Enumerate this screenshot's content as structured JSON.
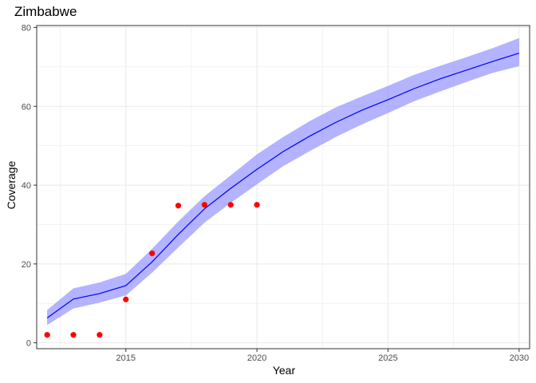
{
  "chart_data": {
    "type": "line",
    "title": "Zimbabwe",
    "xlabel": "Year",
    "ylabel": "Coverage",
    "xlim": [
      2011.6,
      2030.4
    ],
    "ylim": [
      -1.5,
      80.5
    ],
    "x_ticks": [
      2015,
      2020,
      2025,
      2030
    ],
    "y_ticks": [
      0,
      20,
      40,
      60,
      80
    ],
    "grid": true,
    "colors": {
      "line": "#0000ff",
      "ribbon": "#8080ff",
      "points": "#ff0000",
      "grid": "#ebebeb",
      "border": "#333333"
    },
    "series": [
      {
        "kind": "line_with_band",
        "x": [
          2012,
          2013,
          2014,
          2015,
          2016,
          2017,
          2018,
          2019,
          2020,
          2021,
          2022,
          2023,
          2024,
          2025,
          2026,
          2027,
          2028,
          2029,
          2030
        ],
        "y": [
          6.3,
          11.1,
          12.5,
          14.5,
          20.5,
          27.5,
          34.0,
          39.2,
          44.0,
          48.5,
          52.4,
          55.9,
          59.0,
          61.7,
          64.5,
          67.0,
          69.2,
          71.4,
          73.5
        ],
        "lower": [
          4.5,
          8.7,
          10.2,
          12.0,
          17.8,
          24.2,
          30.5,
          35.5,
          40.2,
          44.8,
          48.6,
          52.2,
          55.4,
          58.3,
          61.3,
          63.8,
          66.2,
          68.5,
          70.2
        ],
        "upper": [
          8.3,
          13.8,
          15.3,
          17.5,
          23.8,
          30.8,
          37.2,
          42.5,
          47.8,
          52.2,
          56.2,
          59.7,
          62.5,
          65.2,
          68.0,
          70.3,
          72.5,
          74.8,
          77.3
        ]
      },
      {
        "kind": "points",
        "x": [
          2012,
          2013,
          2014,
          2015,
          2016,
          2017,
          2018,
          2019,
          2020
        ],
        "y": [
          2.0,
          2.0,
          2.0,
          11.0,
          22.7,
          34.8,
          35.0,
          35.0,
          35.0
        ]
      }
    ]
  }
}
